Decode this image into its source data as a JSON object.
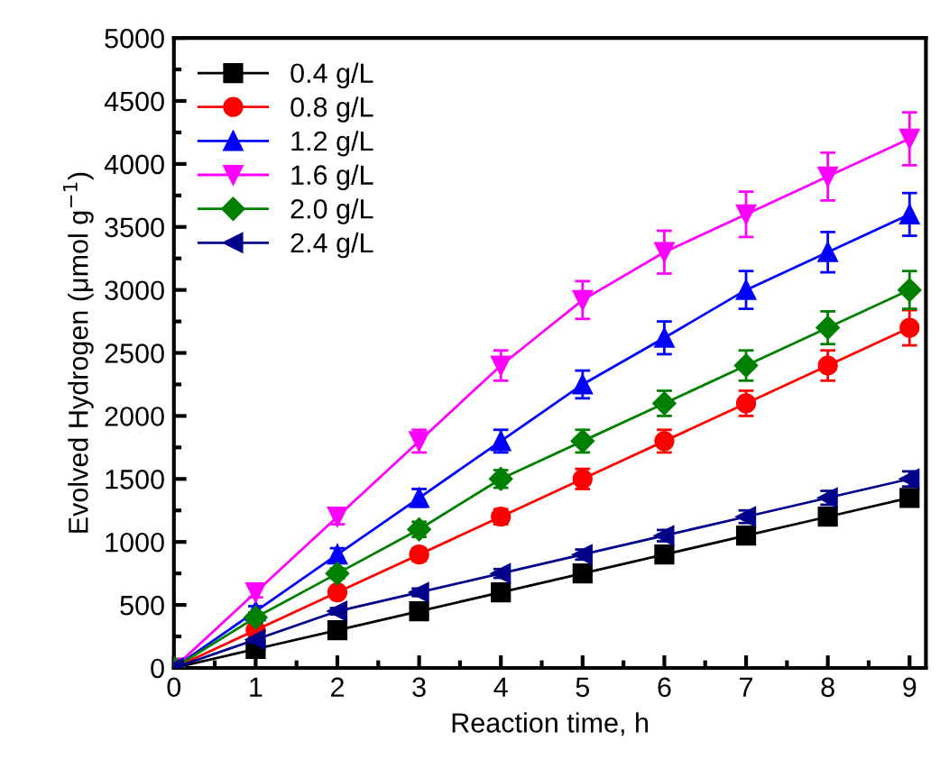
{
  "chart_data": {
    "type": "line",
    "xlabel": "Reaction time, h",
    "ylabel": "Evolved Hydrogen (μmol g$^{−1}$)",
    "x": [
      0,
      1,
      2,
      3,
      4,
      5,
      6,
      7,
      8,
      9
    ],
    "xlim": [
      0,
      9.2
    ],
    "xticks": [
      0,
      1,
      2,
      3,
      4,
      5,
      6,
      7,
      8,
      9
    ],
    "ylim": [
      0,
      5000
    ],
    "yticks": [
      0,
      500,
      1000,
      1500,
      2000,
      2500,
      3000,
      3500,
      4000,
      4500,
      5000
    ],
    "legend": "top left",
    "grid": false,
    "line_style": "solid",
    "series": [
      {
        "name": "0.4 g/L",
        "color": "#000000",
        "marker": "square",
        "values": [
          0,
          150,
          300,
          450,
          600,
          750,
          900,
          1050,
          1200,
          1350
        ],
        "errors": [
          0,
          20,
          25,
          30,
          35,
          40,
          45,
          50,
          55,
          60
        ]
      },
      {
        "name": "0.8 g/L",
        "color": "#ff0000",
        "marker": "circle",
        "values": [
          0,
          300,
          600,
          900,
          1200,
          1500,
          1800,
          2100,
          2400,
          2700
        ],
        "errors": [
          0,
          30,
          40,
          50,
          60,
          80,
          90,
          100,
          120,
          140
        ]
      },
      {
        "name": "1.2 g/L",
        "color": "#0000ff",
        "marker": "triangle",
        "values": [
          0,
          450,
          900,
          1350,
          1800,
          2250,
          2620,
          3000,
          3300,
          3600
        ],
        "errors": [
          0,
          40,
          50,
          70,
          90,
          110,
          130,
          150,
          160,
          170
        ]
      },
      {
        "name": "1.6 g/L",
        "color": "#ff00ff",
        "marker": "triangle_down",
        "values": [
          0,
          600,
          1200,
          1800,
          2400,
          2920,
          3300,
          3600,
          3900,
          4200
        ],
        "errors": [
          0,
          40,
          60,
          90,
          120,
          150,
          170,
          180,
          190,
          210
        ]
      },
      {
        "name": "2.0 g/L",
        "color": "#008000",
        "marker": "diamond",
        "values": [
          0,
          400,
          750,
          1100,
          1500,
          1800,
          2100,
          2400,
          2700,
          3000
        ],
        "errors": [
          0,
          40,
          40,
          60,
          70,
          90,
          100,
          120,
          130,
          150
        ]
      },
      {
        "name": "2.4 g/L",
        "color": "#00008b",
        "marker": "triangle_left",
        "values": [
          0,
          225,
          450,
          600,
          750,
          900,
          1050,
          1200,
          1350,
          1500
        ],
        "errors": [
          0,
          20,
          25,
          30,
          35,
          40,
          45,
          50,
          55,
          60
        ]
      }
    ]
  }
}
